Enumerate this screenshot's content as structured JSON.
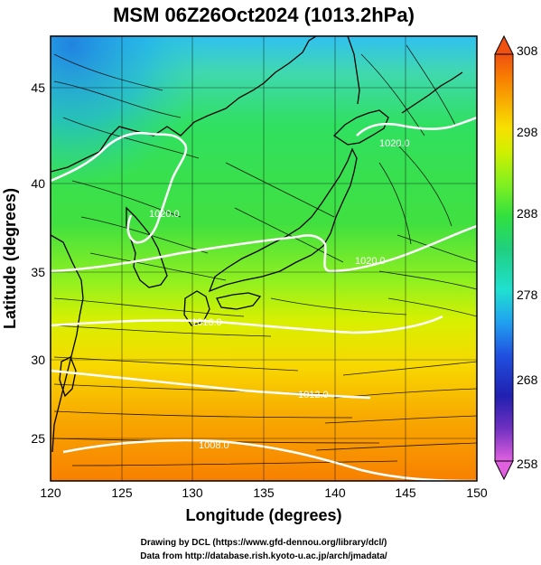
{
  "title": "MSM 06Z26Oct2024 (1013.2hPa)",
  "x_axis": {
    "label": "Longitude (degrees)",
    "ticks": [
      "120",
      "125",
      "130",
      "135",
      "140",
      "145",
      "150"
    ],
    "range": [
      120,
      150
    ]
  },
  "y_axis": {
    "label": "Latitude  (degrees)",
    "ticks": [
      "25",
      "30",
      "35",
      "40",
      "45"
    ],
    "range": [
      22.4,
      47.6
    ]
  },
  "colorbar": {
    "labels": [
      "308",
      "298",
      "288",
      "278",
      "268",
      "258"
    ],
    "range": [
      258,
      308
    ],
    "colors": [
      "#e060e0",
      "#7030c0",
      "#2020b0",
      "#2050e0",
      "#20a0f0",
      "#20e0d0",
      "#20d080",
      "#30e040",
      "#80f020",
      "#d0f000",
      "#f8e000",
      "#f8b000",
      "#f88000",
      "#f05010"
    ]
  },
  "contours": {
    "color": "#ffffff",
    "labels": [
      "1020.0",
      "1020.0",
      "1020.0",
      "1016.0",
      "1012.0",
      "1008.0"
    ]
  },
  "credits": {
    "line1": "Drawing by DCL (https://www.gfd-dennou.org/library/dcl/)",
    "line2": "Data from http://database.rish.kyoto-u.ac.jp/arch/jmadata/"
  }
}
